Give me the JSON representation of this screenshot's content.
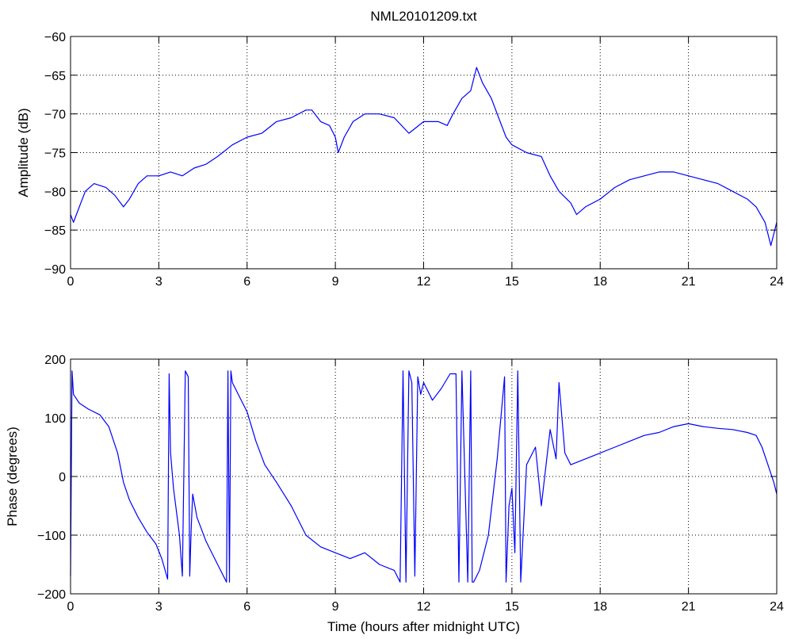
{
  "chart_data": [
    {
      "type": "line",
      "title": "NML20101209.txt",
      "xlabel": "",
      "ylabel": "Amplitude (dB)",
      "xlim": [
        0,
        24
      ],
      "ylim": [
        -90,
        -60
      ],
      "xticks": [
        0,
        3,
        6,
        9,
        12,
        15,
        18,
        21,
        24
      ],
      "yticks": [
        -60,
        -65,
        -70,
        -75,
        -80,
        -85,
        -90
      ],
      "grid": true,
      "line_color": "#0000ff",
      "series": [
        {
          "x": [
            0,
            0.1,
            0.3,
            0.5,
            0.8,
            1.2,
            1.5,
            1.8,
            2.0,
            2.3,
            2.6,
            3.0,
            3.4,
            3.8,
            4.2,
            4.6,
            5.0,
            5.5,
            6.0,
            6.5,
            7.0,
            7.5,
            8.0,
            8.2,
            8.5,
            8.8,
            9.0,
            9.1,
            9.3,
            9.6,
            10.0,
            10.5,
            11.0,
            11.5,
            12.0,
            12.5,
            12.8,
            13.0,
            13.3,
            13.6,
            13.8,
            14.0,
            14.3,
            14.6,
            14.8,
            15.0,
            15.5,
            16.0,
            16.3,
            16.6,
            17.0,
            17.2,
            17.5,
            18.0,
            18.5,
            19.0,
            19.5,
            20.0,
            20.5,
            21.0,
            21.5,
            22.0,
            22.5,
            23.0,
            23.3,
            23.6,
            23.8,
            24.0
          ],
          "y": [
            -83,
            -84,
            -82,
            -80,
            -79,
            -79.5,
            -80.5,
            -82,
            -81,
            -79,
            -78,
            -78,
            -77.5,
            -78,
            -77,
            -76.5,
            -75.5,
            -74,
            -73,
            -72.5,
            -71,
            -70.5,
            -69.5,
            -69.5,
            -71,
            -71.5,
            -73,
            -75,
            -73,
            -71,
            -70,
            -70,
            -70.5,
            -72.5,
            -71,
            -71,
            -71.5,
            -70,
            -68,
            -67,
            -64,
            -66,
            -68,
            -71,
            -73,
            -74,
            -75,
            -75.5,
            -78,
            -80,
            -81.5,
            -83,
            -82,
            -81,
            -79.5,
            -78.5,
            -78,
            -77.5,
            -77.5,
            -78,
            -78.5,
            -79,
            -80,
            -81,
            -82,
            -84,
            -87,
            -84
          ]
        }
      ]
    },
    {
      "type": "line",
      "title": "",
      "xlabel": "Time (hours after midnight UTC)",
      "ylabel": "Phase (degrees)",
      "xlim": [
        0,
        24
      ],
      "ylim": [
        -200,
        200
      ],
      "xticks": [
        0,
        3,
        6,
        9,
        12,
        15,
        18,
        21,
        24
      ],
      "yticks": [
        200,
        100,
        0,
        -100,
        -200
      ],
      "grid": true,
      "line_color": "#0000ff",
      "series": [
        {
          "x": [
            0,
            0.05,
            0.1,
            0.3,
            0.6,
            1.0,
            1.3,
            1.6,
            1.8,
            2.0,
            2.3,
            2.6,
            2.9,
            3.1,
            3.3,
            3.35,
            3.4,
            3.5,
            3.7,
            3.8,
            3.9,
            4.0,
            4.05,
            4.1,
            4.15,
            4.3,
            4.6,
            4.9,
            5.1,
            5.3,
            5.35,
            5.4,
            5.45,
            5.5,
            5.7,
            6.0,
            6.3,
            6.6,
            7.0,
            7.5,
            8.0,
            8.5,
            9.0,
            9.5,
            10.0,
            10.5,
            11.0,
            11.2,
            11.3,
            11.4,
            11.5,
            11.6,
            11.7,
            11.8,
            11.9,
            12.0,
            12.3,
            12.6,
            12.9,
            13.1,
            13.2,
            13.3,
            13.5,
            13.6,
            13.65,
            13.7,
            13.9,
            14.2,
            14.5,
            14.75,
            14.8,
            14.9,
            15.0,
            15.1,
            15.2,
            15.3,
            15.5,
            15.8,
            16.0,
            16.3,
            16.5,
            16.6,
            16.8,
            17.0,
            17.5,
            18.0,
            18.5,
            19.0,
            19.5,
            20.0,
            20.5,
            21.0,
            21.2,
            21.5,
            22.0,
            22.5,
            23.0,
            23.3,
            23.5,
            23.7,
            23.9,
            24.0
          ],
          "y": [
            -170,
            180,
            140,
            125,
            115,
            105,
            85,
            40,
            -10,
            -40,
            -70,
            -95,
            -115,
            -140,
            -175,
            175,
            40,
            -20,
            -100,
            -170,
            180,
            170,
            -170,
            -90,
            -30,
            -70,
            -110,
            -140,
            -160,
            -180,
            180,
            -180,
            180,
            160,
            140,
            110,
            60,
            20,
            -10,
            -50,
            -100,
            -120,
            -130,
            -140,
            -130,
            -150,
            -160,
            -180,
            180,
            -180,
            180,
            160,
            -170,
            170,
            140,
            160,
            130,
            150,
            175,
            175,
            -180,
            180,
            -180,
            180,
            -180,
            -180,
            -160,
            -100,
            30,
            170,
            -180,
            -50,
            -20,
            -130,
            180,
            -180,
            20,
            50,
            -50,
            80,
            30,
            160,
            40,
            20,
            30,
            40,
            50,
            60,
            70,
            75,
            85,
            90,
            88,
            85,
            82,
            80,
            75,
            70,
            50,
            20,
            -10,
            -30
          ]
        }
      ]
    }
  ]
}
